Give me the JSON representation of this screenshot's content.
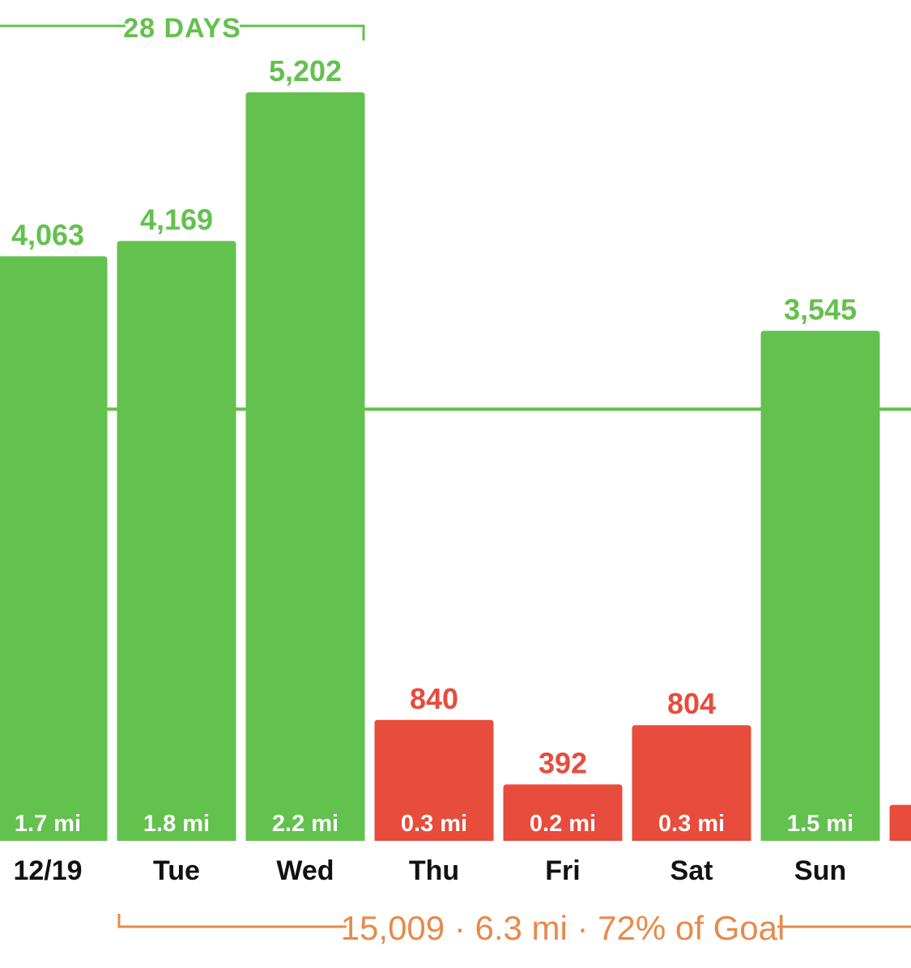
{
  "colors": {
    "goal_met": "#63c14e",
    "goal_missed": "#e74c3c",
    "summary": "#e8894a",
    "axis_text": "#111111",
    "background": "#ffffff"
  },
  "streak": {
    "label": "28 DAYS"
  },
  "summary": {
    "text": "15,009 · 6.3 mi · 72% of Goal"
  },
  "chart_data": {
    "type": "bar",
    "categories": [
      "12/19",
      "Tue",
      "Wed",
      "Thu",
      "Fri",
      "Sat",
      "Sun",
      ""
    ],
    "values": [
      4063,
      4169,
      5202,
      840,
      392,
      804,
      3545,
      250
    ],
    "value_labels": [
      "4,063",
      "4,169",
      "5,202",
      "840",
      "392",
      "804",
      "3,545",
      ""
    ],
    "distance_labels": [
      "1.7 mi",
      "1.8 mi",
      "2.2 mi",
      "0.3 mi",
      "0.2 mi",
      "0.3 mi",
      "1.5 mi",
      ""
    ],
    "goal_met": [
      true,
      true,
      true,
      false,
      false,
      false,
      true,
      false
    ],
    "goal_line": 3000,
    "ylim": [
      0,
      5500
    ],
    "title": "",
    "xlabel": "",
    "ylabel": "",
    "grid": false,
    "legend": "none"
  }
}
